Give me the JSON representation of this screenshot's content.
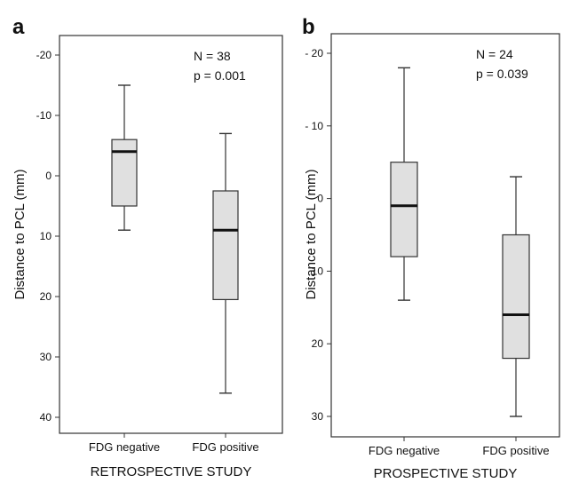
{
  "chart_data": [
    {
      "type": "box",
      "panel_label": "a",
      "xlabel": "RETROSPECTIVE STUDY",
      "ylabel": "Distance to PCL (mm)",
      "annotations": [
        "N = 38",
        "p = 0.001"
      ],
      "y_ticks": [
        -20,
        -10,
        0,
        10,
        20,
        30,
        40
      ],
      "y_tick_labels": [
        "-20",
        "-10",
        "0",
        "10",
        "20",
        "30",
        "40"
      ],
      "ylim": [
        -24,
        42
      ],
      "y_inverted": true,
      "categories": [
        "FDG negative",
        "FDG positive"
      ],
      "boxes": [
        {
          "category": "FDG negative",
          "whisker_low": -15,
          "q1": -6,
          "median": -4,
          "q3": 5,
          "whisker_high": 9
        },
        {
          "category": "FDG positive",
          "whisker_low": -7,
          "q1": 2.5,
          "median": 9,
          "q3": 20.5,
          "whisker_high": 36
        }
      ]
    },
    {
      "type": "box",
      "panel_label": "b",
      "xlabel": "PROSPECTIVE STUDY",
      "ylabel": "Distance to PCL (mm)",
      "annotations": [
        "N = 24",
        "p = 0.039"
      ],
      "y_ticks": [
        -20,
        -10,
        0,
        10,
        20,
        30
      ],
      "y_tick_labels": [
        "- 20",
        "- 10",
        "0",
        "10",
        "20",
        "30"
      ],
      "ylim": [
        -23.5,
        33.5
      ],
      "y_inverted": true,
      "categories": [
        "FDG negative",
        "FDG positive"
      ],
      "boxes": [
        {
          "category": "FDG negative",
          "whisker_low": -18,
          "q1": -5,
          "median": 1,
          "q3": 8,
          "whisker_high": 14
        },
        {
          "category": "FDG positive",
          "whisker_low": -3,
          "q1": 5,
          "median": 16,
          "q3": 22,
          "whisker_high": 30
        }
      ]
    }
  ],
  "colors": {
    "box_fill": "#e0e0e0",
    "stroke": "#333333",
    "median": "#111111"
  }
}
